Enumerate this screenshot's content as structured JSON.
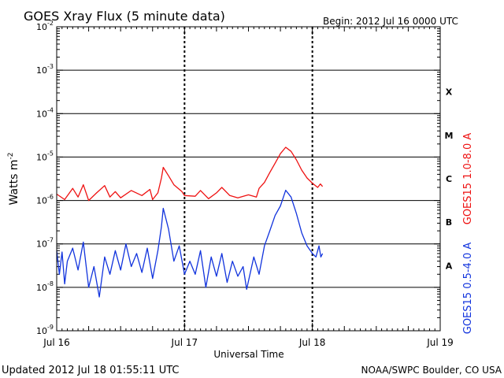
{
  "header": {
    "title": "GOES Xray Flux (5 minute data)",
    "begin": "Begin:  2012 Jul 16 0000 UTC"
  },
  "footer": {
    "updated": "Updated 2012 Jul 18 01:55:11 UTC",
    "credit": "NOAA/SWPC Boulder, CO USA"
  },
  "colors": {
    "long_channel": "#ee1111",
    "short_channel": "#1133dd",
    "axis": "#000000"
  },
  "chart_data": {
    "type": "line",
    "title": "GOES Xray Flux (5 minute data)",
    "xlabel": "Universal Time",
    "ylabel": "Watts m",
    "ylabel_superscript": "-2",
    "x_scale": "time",
    "y_scale": "log",
    "xlim": [
      "2012-07-16 00:00",
      "2012-07-19 00:00"
    ],
    "ylim": [
      1e-09,
      0.01
    ],
    "x_ticks": [
      {
        "label": "Jul 16",
        "day": 0
      },
      {
        "label": "Jul 17",
        "day": 1
      },
      {
        "label": "Jul 18",
        "day": 2
      },
      {
        "label": "Jul 19",
        "day": 3
      }
    ],
    "y_ticks": [
      {
        "value": 0.01,
        "base": "10",
        "exp": "-2"
      },
      {
        "value": 0.001,
        "base": "10",
        "exp": "-3"
      },
      {
        "value": 0.0001,
        "base": "10",
        "exp": "-4"
      },
      {
        "value": 1e-05,
        "base": "10",
        "exp": "-5"
      },
      {
        "value": 1e-06,
        "base": "10",
        "exp": "-6"
      },
      {
        "value": 1e-07,
        "base": "10",
        "exp": "-7"
      },
      {
        "value": 1e-08,
        "base": "10",
        "exp": "-8"
      },
      {
        "value": 1e-09,
        "base": "10",
        "exp": "-9"
      }
    ],
    "flare_classes": [
      {
        "label": "X",
        "value": 0.0001
      },
      {
        "label": "M",
        "value": 1e-05
      },
      {
        "label": "C",
        "value": 1e-06
      },
      {
        "label": "B",
        "value": 1e-07
      },
      {
        "label": "A",
        "value": 1e-08
      }
    ],
    "grid": "horizontal at each decade; dashed vertical at each day boundary",
    "legend": "right side, vertical labels",
    "series": [
      {
        "name": "GOES15 1.0-8.0 A",
        "color": "#ee1111",
        "points": [
          [
            "07-16 00:00",
            1.4e-06
          ],
          [
            "07-16 01:30",
            1.05e-06
          ],
          [
            "07-16 03:00",
            1.9e-06
          ],
          [
            "07-16 04:00",
            1.2e-06
          ],
          [
            "07-16 05:00",
            2.3e-06
          ],
          [
            "07-16 06:00",
            1e-06
          ],
          [
            "07-16 07:30",
            1.5e-06
          ],
          [
            "07-16 09:00",
            2.2e-06
          ],
          [
            "07-16 10:00",
            1.2e-06
          ],
          [
            "07-16 11:00",
            1.6e-06
          ],
          [
            "07-16 12:00",
            1.15e-06
          ],
          [
            "07-16 14:00",
            1.7e-06
          ],
          [
            "07-16 16:00",
            1.3e-06
          ],
          [
            "07-16 17:30",
            1.8e-06
          ],
          [
            "07-16 18:00",
            1.05e-06
          ],
          [
            "07-16 19:00",
            1.5e-06
          ],
          [
            "07-16 19:40",
            3.3e-06
          ],
          [
            "07-16 20:00",
            5.8e-06
          ],
          [
            "07-16 21:00",
            3.7e-06
          ],
          [
            "07-16 22:00",
            2.3e-06
          ],
          [
            "07-16 23:30",
            1.6e-06
          ],
          [
            "07-17 00:00",
            1.3e-06
          ],
          [
            "07-17 02:00",
            1.25e-06
          ],
          [
            "07-17 03:00",
            1.7e-06
          ],
          [
            "07-17 04:30",
            1.1e-06
          ],
          [
            "07-17 06:00",
            1.5e-06
          ],
          [
            "07-17 07:00",
            2e-06
          ],
          [
            "07-17 08:30",
            1.3e-06
          ],
          [
            "07-17 10:00",
            1.15e-06
          ],
          [
            "07-17 12:00",
            1.35e-06
          ],
          [
            "07-17 13:30",
            1.2e-06
          ],
          [
            "07-17 14:00",
            1.9e-06
          ],
          [
            "07-17 15:00",
            2.6e-06
          ],
          [
            "07-17 16:00",
            4.4e-06
          ],
          [
            "07-17 17:00",
            7.2e-06
          ],
          [
            "07-17 18:00",
            1.2e-05
          ],
          [
            "07-17 19:00",
            1.68e-05
          ],
          [
            "07-17 20:00",
            1.35e-05
          ],
          [
            "07-17 21:00",
            8.6e-06
          ],
          [
            "07-17 22:00",
            5e-06
          ],
          [
            "07-17 23:00",
            3.3e-06
          ],
          [
            "07-18 00:00",
            2.5e-06
          ],
          [
            "07-18 01:00",
            2e-06
          ],
          [
            "07-18 01:30",
            2.4e-06
          ],
          [
            "07-18 01:55",
            2.1e-06
          ]
        ]
      },
      {
        "name": "GOES15 0.5-4.0 A",
        "color": "#1133dd",
        "points": [
          [
            "07-16 00:00",
            7e-08
          ],
          [
            "07-16 00:30",
            2e-08
          ],
          [
            "07-16 01:00",
            6.5e-08
          ],
          [
            "07-16 01:30",
            1.2e-08
          ],
          [
            "07-16 02:00",
            4e-08
          ],
          [
            "07-16 03:00",
            8e-08
          ],
          [
            "07-16 04:00",
            2.5e-08
          ],
          [
            "07-16 05:00",
            1.1e-07
          ],
          [
            "07-16 06:00",
            1e-08
          ],
          [
            "07-16 07:00",
            3e-08
          ],
          [
            "07-16 08:00",
            6e-09
          ],
          [
            "07-16 09:00",
            5e-08
          ],
          [
            "07-16 10:00",
            2e-08
          ],
          [
            "07-16 11:00",
            7e-08
          ],
          [
            "07-16 12:00",
            2.5e-08
          ],
          [
            "07-16 13:00",
            1e-07
          ],
          [
            "07-16 14:00",
            3e-08
          ],
          [
            "07-16 15:00",
            6e-08
          ],
          [
            "07-16 16:00",
            2.2e-08
          ],
          [
            "07-16 17:00",
            8e-08
          ],
          [
            "07-16 18:00",
            1.6e-08
          ],
          [
            "07-16 19:00",
            7e-08
          ],
          [
            "07-16 19:40",
            2.5e-07
          ],
          [
            "07-16 20:00",
            6.6e-07
          ],
          [
            "07-16 21:00",
            2.2e-07
          ],
          [
            "07-16 22:00",
            4e-08
          ],
          [
            "07-16 23:00",
            9e-08
          ],
          [
            "07-17 00:00",
            2e-08
          ],
          [
            "07-17 01:00",
            4e-08
          ],
          [
            "07-17 02:00",
            2e-08
          ],
          [
            "07-17 03:00",
            7e-08
          ],
          [
            "07-17 04:00",
            1e-08
          ],
          [
            "07-17 05:00",
            5e-08
          ],
          [
            "07-17 06:00",
            1.8e-08
          ],
          [
            "07-17 07:00",
            6e-08
          ],
          [
            "07-17 08:00",
            1.3e-08
          ],
          [
            "07-17 09:00",
            4e-08
          ],
          [
            "07-17 10:00",
            1.8e-08
          ],
          [
            "07-17 11:00",
            3e-08
          ],
          [
            "07-17 11:40",
            9e-09
          ],
          [
            "07-17 13:00",
            5e-08
          ],
          [
            "07-17 14:00",
            2e-08
          ],
          [
            "07-17 15:00",
            9e-08
          ],
          [
            "07-17 16:00",
            2e-07
          ],
          [
            "07-17 17:00",
            4.5e-07
          ],
          [
            "07-17 18:00",
            7.5e-07
          ],
          [
            "07-17 19:00",
            1.72e-06
          ],
          [
            "07-17 20:00",
            1.2e-06
          ],
          [
            "07-17 21:00",
            5e-07
          ],
          [
            "07-17 22:00",
            1.8e-07
          ],
          [
            "07-17 23:00",
            9e-08
          ],
          [
            "07-18 00:00",
            6e-08
          ],
          [
            "07-18 00:40",
            5e-08
          ],
          [
            "07-18 01:15",
            9e-08
          ],
          [
            "07-18 01:35",
            5e-08
          ],
          [
            "07-18 01:55",
            6e-08
          ]
        ]
      }
    ]
  }
}
